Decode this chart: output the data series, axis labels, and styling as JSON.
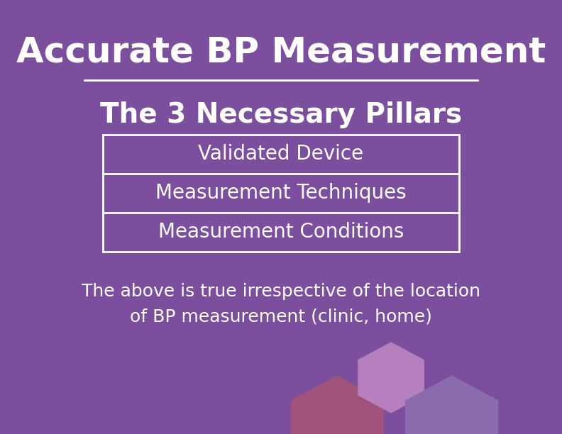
{
  "background_color": "#7B4F9E",
  "title": "Accurate BP Measurement",
  "subtitle": "The 3 Necessary Pillars",
  "pillars": [
    "Validated Device",
    "Measurement Techniques",
    "Measurement Conditions"
  ],
  "footer": "The above is true irrespective of the location\nof BP measurement (clinic, home)",
  "title_color": "#FFFFFF",
  "subtitle_color": "#FFFFFF",
  "pillar_text_color": "#FFFFFF",
  "footer_color": "#FFFFFF",
  "box_edge_color": "#FFFFFF",
  "box_face_color": "#7B4F9E",
  "hex_colors": [
    "#A0527A",
    "#B87FBF",
    "#8B6BAE"
  ],
  "title_fontsize": 36,
  "subtitle_fontsize": 28,
  "pillar_fontsize": 20,
  "footer_fontsize": 18
}
